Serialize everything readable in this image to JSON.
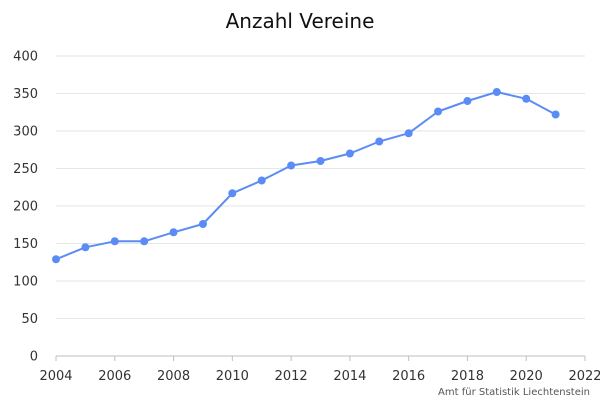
{
  "chart_data": {
    "type": "line",
    "title": "Anzahl Vereine",
    "xlabel": "",
    "ylabel": "",
    "xlim": [
      2004,
      2022
    ],
    "ylim": [
      0,
      400
    ],
    "x_ticks": [
      2004,
      2006,
      2008,
      2010,
      2012,
      2014,
      2016,
      2018,
      2020,
      2022
    ],
    "y_ticks": [
      0,
      50,
      100,
      150,
      200,
      250,
      300,
      350,
      400
    ],
    "grid": true,
    "legend": "none",
    "series": [
      {
        "color": "#5b8cf6",
        "x": [
          2004,
          2005,
          2006,
          2007,
          2008,
          2009,
          2010,
          2011,
          2012,
          2013,
          2014,
          2015,
          2016,
          2017,
          2018,
          2019,
          2020,
          2021
        ],
        "values": [
          129,
          145,
          153,
          153,
          165,
          176,
          217,
          234,
          254,
          260,
          270,
          286,
          297,
          326,
          340,
          352,
          343,
          322
        ]
      }
    ]
  },
  "credit": "Amt für Statistik Liechtenstein"
}
